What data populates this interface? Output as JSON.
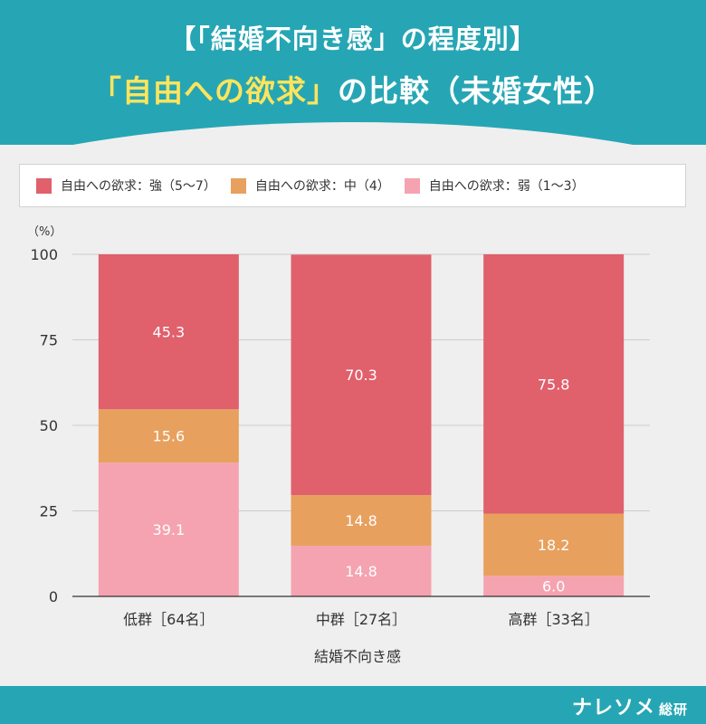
{
  "header": {
    "line1": "【「結婚不向き感」の程度別】",
    "line2_highlight": "「自由への欲求」",
    "line2_rest": "の比較（未婚女性）"
  },
  "legend": [
    {
      "label": "自由への欲求：強（5〜7）",
      "color": "#e0606c"
    },
    {
      "label": "自由への欲求：中（4）",
      "color": "#e8a05e"
    },
    {
      "label": "自由への欲求：弱（1〜3）",
      "color": "#f5a3b0"
    }
  ],
  "chart_data": {
    "type": "bar",
    "stacked": true,
    "categories": [
      "低群［64名］",
      "中群［27名］",
      "高群［33名］"
    ],
    "series": [
      {
        "name": "自由への欲求：弱（1〜3）",
        "values": [
          39.1,
          14.8,
          6.0
        ],
        "color": "#f5a3b0"
      },
      {
        "name": "自由への欲求：中（4）",
        "values": [
          15.6,
          14.8,
          18.2
        ],
        "color": "#e8a05e"
      },
      {
        "name": "自由への欲求：強（5〜7）",
        "values": [
          45.3,
          70.3,
          75.8
        ],
        "color": "#e0606c"
      }
    ],
    "value_labels": [
      [
        "39.1",
        "14.8",
        "6.0"
      ],
      [
        "15.6",
        "14.8",
        "18.2"
      ],
      [
        "45.3",
        "70.3",
        "75.8"
      ]
    ],
    "xlabel": "結婚不向き感",
    "yunit": "（%）",
    "ylim": [
      0,
      100
    ],
    "yticks": [
      0,
      25,
      50,
      75,
      100
    ],
    "grid": true,
    "legend_position": "top"
  },
  "footer": {
    "brand": "ナレソメ",
    "brand_suffix": "総研"
  }
}
